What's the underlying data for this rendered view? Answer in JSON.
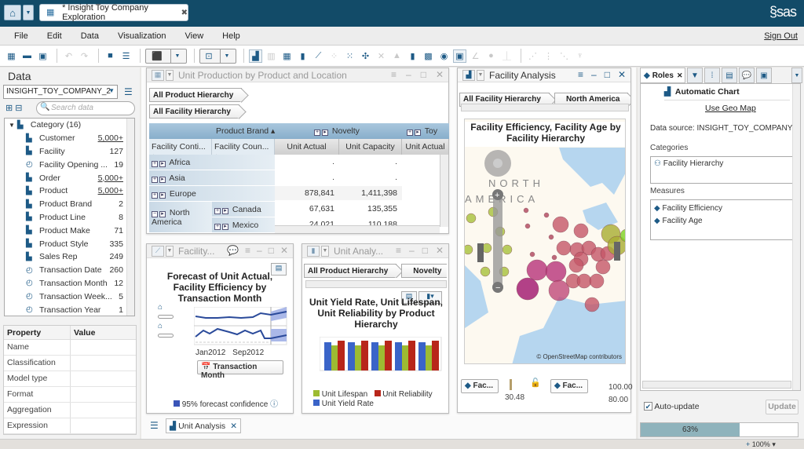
{
  "titlebar": {
    "document_tab": "* Insight Toy Company Exploration",
    "brand": "sas"
  },
  "menu": {
    "items": [
      "File",
      "Edit",
      "Data",
      "Visualization",
      "View",
      "Help"
    ],
    "sign_out": "Sign Out"
  },
  "toolbar": {
    "icons": [
      "new-exploration-icon",
      "open-icon",
      "save-icon",
      "undo-icon",
      "redo-icon",
      "single-view-icon",
      "stacked-view-icon",
      "select-mode-icon",
      "new-visualization-icon",
      "automatic-chart-icon",
      "table-icon",
      "crosstab-icon",
      "bar-chart-icon",
      "line-chart-icon",
      "scatter-plot-icon",
      "heatmap-icon",
      "network-icon",
      "parallel-icon",
      "histogram-icon",
      "box-plot-icon",
      "treemap-icon",
      "geo-map-icon",
      "correlation-matrix-icon",
      "line-disabled-icon",
      "bubble-disabled-icon",
      "waterfall-disabled-icon",
      "forecast-disabled-icon",
      "decision-tree-disabled-icon",
      "stats-disabled-icon",
      "tree-disabled-icon"
    ]
  },
  "data_panel": {
    "title": "Data",
    "data_source": "INSIGHT_TOY_COMPANY_2",
    "search_placeholder": "Search data",
    "category": "Category (16)",
    "items": [
      {
        "name": "Customer",
        "count": "5,000+",
        "type": "category",
        "link": true
      },
      {
        "name": "Facility",
        "count": "127",
        "type": "category",
        "link": false
      },
      {
        "name": "Facility Opening ...",
        "count": "19",
        "type": "date",
        "link": false
      },
      {
        "name": "Order",
        "count": "5,000+",
        "type": "category",
        "link": true
      },
      {
        "name": "Product",
        "count": "5,000+",
        "type": "category",
        "link": true
      },
      {
        "name": "Product Brand",
        "count": "2",
        "type": "category",
        "link": false
      },
      {
        "name": "Product Line",
        "count": "8",
        "type": "category",
        "link": false
      },
      {
        "name": "Product Make",
        "count": "71",
        "type": "category",
        "link": false
      },
      {
        "name": "Product Style",
        "count": "335",
        "type": "category",
        "link": false
      },
      {
        "name": "Sales Rep",
        "count": "249",
        "type": "category",
        "link": false
      },
      {
        "name": "Transaction Date",
        "count": "260",
        "type": "date",
        "link": false
      },
      {
        "name": "Transaction Month",
        "count": "12",
        "type": "date",
        "link": false
      },
      {
        "name": "Transaction Week...",
        "count": "5",
        "type": "date",
        "link": false
      },
      {
        "name": "Transaction Year",
        "count": "1",
        "type": "date",
        "link": false
      }
    ],
    "property_header": "Property",
    "value_header": "Value",
    "properties": [
      "Name",
      "Classification",
      "Model type",
      "Format",
      "Aggregation",
      "Expression"
    ]
  },
  "crosstab_panel": {
    "title": "Unit Production by Product and Location",
    "breadcrumbs": [
      "All Product Hierarchy",
      "All Facility Hierarchy"
    ],
    "product_brand_label": "Product Brand",
    "brands": [
      "Novelty",
      "Toy"
    ],
    "row_headers": [
      "Facility Conti...",
      "Facility Coun..."
    ],
    "columns": [
      "Unit Actual",
      "Unit Capacity",
      "Unit Actual"
    ],
    "rows": [
      {
        "continent": "Africa",
        "country": "",
        "values": [
          ".",
          "."
        ]
      },
      {
        "continent": "Asia",
        "country": "",
        "values": [
          ".",
          "."
        ]
      },
      {
        "continent": "Europe",
        "country": "",
        "values": [
          "878,841",
          "1,411,398"
        ]
      },
      {
        "continent": "North America",
        "country": "Canada",
        "values": [
          "67,631",
          "135,355"
        ]
      },
      {
        "continent": "",
        "country": "Mexico",
        "values": [
          "24,021",
          "110,188"
        ]
      }
    ]
  },
  "forecast_panel": {
    "title": "Facility...",
    "chart_title": "Forecast of Unit Actual, Facility Efficiency by Transaction Month",
    "x_ticks": [
      "Jan2012",
      "Sep2012"
    ],
    "x_button": "Transaction Month",
    "legend": "95% forecast confidence"
  },
  "bar_panel": {
    "title": "Unit Analy...",
    "breadcrumbs": [
      "All Product Hierarchy",
      "Novelty"
    ],
    "chart_title": "Unit Yield Rate, Unit Lifespan, Unit Reliability by Product Hierarchy",
    "legend": [
      "Unit Lifespan",
      "Unit Reliability",
      "Unit Yield Rate"
    ]
  },
  "map_panel": {
    "title": "Facility Analysis",
    "breadcrumbs": [
      "All Facility Hierarchy",
      "North America"
    ],
    "chart_title": "Facility Efficiency, Facility Age by Facility Hierarchy",
    "map_label": [
      "NORTH",
      "AMERICA"
    ],
    "attribution": "© OpenStreetMap contributors",
    "legend_buttons": [
      "Fac...",
      "Fac..."
    ],
    "legend_value": "30.48",
    "scale_values": [
      "100.00",
      "80.00"
    ]
  },
  "bottom_tabs": {
    "active": "Unit Analysis"
  },
  "roles_panel": {
    "tab_label": "Roles",
    "chart_type": "Automatic Chart",
    "link": "Use Geo Map",
    "data_source_label": "Data source:",
    "data_source": "INSIGHT_TOY_COMPANY_",
    "categories_label": "Categories",
    "categories": [
      "Facility Hierarchy"
    ],
    "measures_label": "Measures",
    "measures": [
      "Facility Efficiency",
      "Facility Age"
    ],
    "auto_update": "Auto-update",
    "update_button": "Update",
    "progress": "63%",
    "zoom": "100%"
  },
  "colors": {
    "titlebar": "#124b68",
    "bar_blue": "#3a64c8",
    "bar_green": "#9dbb32",
    "bar_red": "#b8261a",
    "forecast_line": "#2a4a9a"
  }
}
